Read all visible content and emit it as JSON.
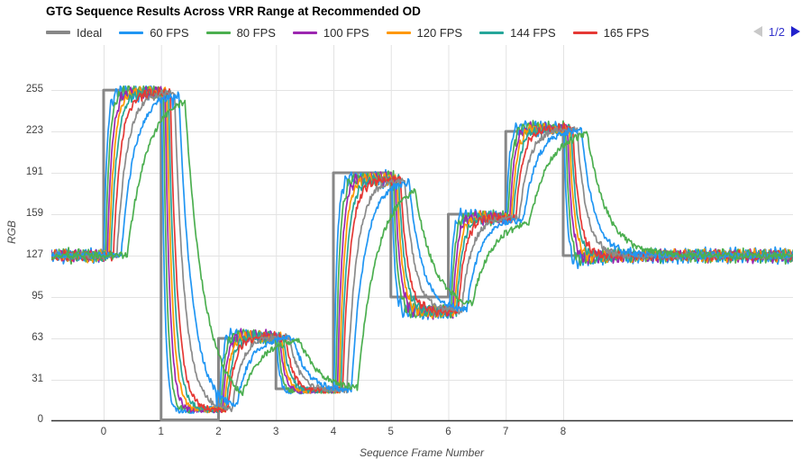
{
  "header": {
    "title": "GTG Sequence Results Across VRR Range at Recommended OD",
    "pagination": {
      "label": "1/2",
      "prev_enabled": false,
      "next_enabled": true
    }
  },
  "chart_data": {
    "type": "line",
    "title": "GTG Sequence Results Across VRR Range at Recommended OD",
    "xlabel": "Sequence Frame Number",
    "ylabel": "RGB",
    "x_ticks": [
      0,
      1,
      2,
      3,
      4,
      5,
      6,
      7,
      8
    ],
    "y_ticks": [
      0,
      31,
      63,
      95,
      127,
      159,
      191,
      223,
      255
    ],
    "xlim": [
      -0.91,
      12.02
    ],
    "ylim": [
      0,
      290
    ],
    "grid": true,
    "legend_position": "top",
    "legend_pagination": "1/2",
    "colors": {
      "grid": "#e3e3e3",
      "axis_line": "#333333",
      "tick_label": "#424242",
      "axis_title": "#4a4a4a"
    },
    "initial_level": 127,
    "segments": [
      {
        "from": 0,
        "to": 1,
        "ideal": 255,
        "settle": 253,
        "kick": 5
      },
      {
        "from": 1,
        "to": 2,
        "ideal": 0,
        "settle": 8,
        "kick": -6
      },
      {
        "from": 2,
        "to": 3,
        "ideal": 63,
        "settle": 64,
        "kick": 7
      },
      {
        "from": 3,
        "to": 4,
        "ideal": 24,
        "settle": 23,
        "kick": -3
      },
      {
        "from": 4,
        "to": 5,
        "ideal": 191,
        "settle": 186,
        "kick": 6
      },
      {
        "from": 5,
        "to": 6,
        "ideal": 95,
        "settle": 84,
        "kick": -4
      },
      {
        "from": 6,
        "to": 7,
        "ideal": 159,
        "settle": 156,
        "kick": 7
      },
      {
        "from": 7,
        "to": 8,
        "ideal": 223,
        "settle": 225,
        "kick": 5
      },
      {
        "from": 8,
        "to": 12,
        "ideal": 127,
        "settle": 127,
        "kick": -13
      }
    ],
    "series": [
      {
        "label": "Ideal",
        "color": "#878787",
        "role": "ideal",
        "in_legend": true,
        "width": 3
      },
      {
        "label": "60 FPS",
        "color": "#2196F3",
        "in_legend": true,
        "delay": 0.02,
        "tau": 0.055,
        "kick_scale": 1.0,
        "ripple": 5.8
      },
      {
        "label": "80 FPS",
        "color": "#4CAF50",
        "in_legend": true,
        "delay": 0.05,
        "tau": 0.068,
        "kick_scale": 0.95,
        "ripple": 5.1
      },
      {
        "label": "100 FPS",
        "color": "#9C27B0",
        "in_legend": true,
        "delay": 0.08,
        "tau": 0.082,
        "kick_scale": 0.9,
        "ripple": 4.5
      },
      {
        "label": "120 FPS",
        "color": "#FF9800",
        "in_legend": true,
        "delay": 0.11,
        "tau": 0.096,
        "kick_scale": 0.85,
        "ripple": 3.9
      },
      {
        "label": "144 FPS",
        "color": "#26A69A",
        "in_legend": true,
        "delay": 0.14,
        "tau": 0.112,
        "kick_scale": 0.8,
        "ripple": 3.3
      },
      {
        "label": "165 FPS",
        "color": "#E53935",
        "in_legend": true,
        "delay": 0.175,
        "tau": 0.13,
        "kick_scale": 0.75,
        "ripple": 2.7
      },
      {
        "label": "",
        "color": "#8a8a8a",
        "in_legend": false,
        "delay": 0.24,
        "tau": 0.175,
        "kick_scale": 0.45,
        "ripple": 1.0
      },
      {
        "label": "",
        "color": "#2196F3",
        "in_legend": false,
        "delay": 0.32,
        "tau": 0.23,
        "kick_scale": 0.3,
        "ripple": 1.0,
        "low_spikes": true
      },
      {
        "label": "",
        "color": "#4CAF50",
        "in_legend": false,
        "delay": 0.42,
        "tau": 0.34,
        "kick_scale": 0.12,
        "ripple": 1.0
      }
    ]
  }
}
